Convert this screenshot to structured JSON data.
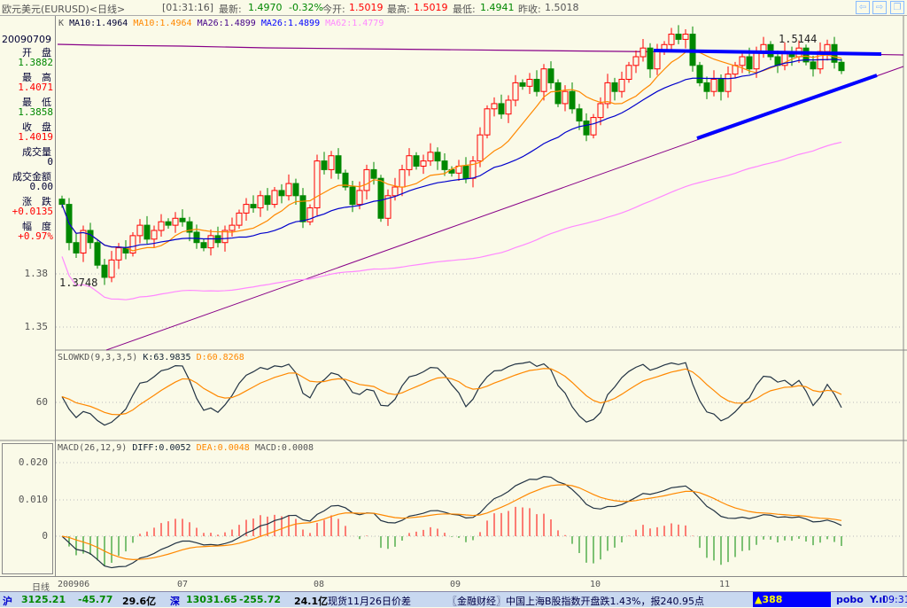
{
  "title": {
    "name": "欧元美元(EURUSD)<日线>",
    "time": "[01:31:16]",
    "latest_label": "最新:",
    "latest": "1.4970",
    "change": "-0.32%",
    "open_label": "今开:",
    "open": "1.5019",
    "high_label": "最高:",
    "high": "1.5019",
    "low_label": "最低:",
    "low": "1.4941",
    "prev_label": "昨收:",
    "prev": "1.5018"
  },
  "nav": {
    "back": "⇦",
    "forward": "⇨",
    "restore": "❐"
  },
  "left": {
    "date": "20090709",
    "items": [
      {
        "label": "开　盘",
        "value": "1.3882",
        "color": "#080"
      },
      {
        "label": "最　高",
        "value": "1.4071",
        "color": "#f00"
      },
      {
        "label": "最　低",
        "value": "1.3858",
        "color": "#080"
      },
      {
        "label": "收　盘",
        "value": "1.4019",
        "color": "#f00"
      },
      {
        "label": "成交量",
        "value": "0",
        "color": "#003"
      },
      {
        "label": "成交金额",
        "value": "0.00",
        "color": "#003"
      },
      {
        "label": "涨　跌",
        "value": "+0.0135",
        "color": "#f00"
      },
      {
        "label": "幅　度",
        "value": "+0.97%",
        "color": "#f00"
      }
    ]
  },
  "ma_legend": {
    "k": "K",
    "ma10a": "MA10:1.4964",
    "ma10b": "MA10:1.4964",
    "ma26a": "MA26:1.4899",
    "ma26b": "MA26:1.4899",
    "ma62": "MA62:1.4779"
  },
  "kd_legend": {
    "name": "SLOWKD(9,3,3,5)",
    "k": "K:63.9835",
    "d": "D:60.8268"
  },
  "macd_legend": {
    "name": "MACD(26,12,9)",
    "diff": "DIFF:0.0052",
    "dea": "DEA:0.0048",
    "macd": "MACD:0.0008"
  },
  "annotations": {
    "high": "1.5144",
    "low": "1.3748"
  },
  "chart_data": {
    "type": "candlestick",
    "price_ticks": [
      "1.38",
      "1.35"
    ],
    "kd_ticks": [
      "60"
    ],
    "macd_ticks": [
      "0.020",
      "0.010",
      "0"
    ],
    "x_labels": [
      "200906",
      "07",
      "08",
      "09",
      "10",
      "11"
    ],
    "x_label_prefix": "日线",
    "closes": [
      1.42,
      1.398,
      1.392,
      1.405,
      1.398,
      1.385,
      1.378,
      1.388,
      1.395,
      1.392,
      1.402,
      1.408,
      1.4,
      1.405,
      1.41,
      1.408,
      1.412,
      1.41,
      1.404,
      1.398,
      1.395,
      1.402,
      1.398,
      1.405,
      1.408,
      1.415,
      1.42,
      1.418,
      1.425,
      1.42,
      1.428,
      1.425,
      1.432,
      1.425,
      1.41,
      1.418,
      1.445,
      1.44,
      1.448,
      1.438,
      1.43,
      1.42,
      1.428,
      1.44,
      1.435,
      1.412,
      1.425,
      1.43,
      1.44,
      1.448,
      1.442,
      1.445,
      1.45,
      1.445,
      1.44,
      1.438,
      1.442,
      1.435,
      1.445,
      1.46,
      1.475,
      1.478,
      1.472,
      1.48,
      1.49,
      1.488,
      1.492,
      1.485,
      1.498,
      1.49,
      1.478,
      1.485,
      1.475,
      1.468,
      1.46,
      1.47,
      1.478,
      1.49,
      1.485,
      1.492,
      1.5,
      1.505,
      1.51,
      1.498,
      1.508,
      1.512,
      1.518,
      1.515,
      1.518,
      1.5,
      1.49,
      1.485,
      1.492,
      1.485,
      1.495,
      1.5,
      1.505,
      1.498,
      1.508,
      1.512,
      1.505,
      1.5,
      1.508,
      1.505,
      1.51,
      1.502,
      1.498,
      1.508,
      1.512,
      1.5018,
      1.497
    ],
    "colors": {
      "up": "#f00",
      "down": "#080",
      "ma10": "#f80",
      "ma26": "#00c",
      "ma62": "#f8f",
      "k": "#234",
      "d": "#f80"
    }
  },
  "status": {
    "sh_label": "沪",
    "sh": "3125.21",
    "sh_chg": "-45.77",
    "sh_amt": "29.6亿",
    "sz_label": "深",
    "sz": "13031.65",
    "sz_chg": "-255.72",
    "sz_amt": "24.1亿",
    "news1": "现货11月26日价差",
    "news2": "〖金融财经〗中国上海B股指数开盘跌1.43%，报240.95点",
    "alert": "▲388",
    "brand": "pobo",
    "signal": "Y.ıl",
    "clock": "09:31"
  }
}
